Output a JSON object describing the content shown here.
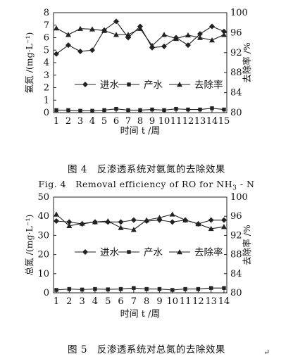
{
  "charts": [
    {
      "figure_caption": "图 4　反渗透系统对氨氮的去除效果",
      "figure_caption_en": "Fig. 4　Removal efficiency of RO for NH",
      "figure_caption_en_sub": "3",
      "figure_caption_en_tail": " - N",
      "ylabel_left": "氨氮 /(mg·L⁻¹)",
      "ylabel_right": "去除率 /%",
      "xlabel": "时间 t /周",
      "legend": {
        "in_label": "进水",
        "out_label": "产水",
        "rate_label": "去除率"
      }
    },
    {
      "figure_caption": "图 5　反渗透系统对总氮的去除效果",
      "ylabel_left": "总氮 /(mg·L⁻¹)",
      "ylabel_right": "去除率 /%",
      "xlabel": "时间 t /周",
      "legend": {
        "in_label": "进水",
        "out_label": "产水",
        "rate_label": "去除率"
      }
    }
  ],
  "return_mark": "↵",
  "chart_data": [
    {
      "type": "line",
      "x": [
        1,
        2,
        3,
        4,
        5,
        6,
        7,
        8,
        9,
        10,
        11,
        12,
        13,
        14,
        15
      ],
      "xlim": [
        1,
        15
      ],
      "ylim_left": [
        0,
        8
      ],
      "yticks_left": [
        0,
        1,
        2,
        3,
        4,
        5,
        6,
        7,
        8
      ],
      "ylim_right": [
        80,
        100
      ],
      "yticks_right": [
        80,
        84,
        88,
        92,
        96,
        100
      ],
      "ylabel": "氨氮 /(mg·L⁻¹)",
      "ylabel_right": "去除率 /%",
      "xlabel": "时间 t /周",
      "series": [
        {
          "name": "进水",
          "axis": "left",
          "marker": "diamond",
          "values": [
            4.7,
            5.4,
            4.9,
            5.0,
            6.6,
            7.3,
            6.0,
            6.9,
            5.2,
            5.3,
            6.0,
            5.4,
            6.3,
            6.9,
            6.5
          ]
        },
        {
          "name": "产水",
          "axis": "left",
          "marker": "square",
          "values": [
            0.2,
            0.2,
            0.15,
            0.15,
            0.2,
            0.3,
            0.2,
            0.2,
            0.25,
            0.2,
            0.3,
            0.25,
            0.25,
            0.35,
            0.25
          ]
        },
        {
          "name": "去除率",
          "axis": "right",
          "marker": "triangle",
          "values": [
            96.9,
            95.6,
            96.8,
            96.7,
            96.4,
            95.6,
            95.6,
            96.8,
            93.4,
            95.6,
            94.8,
            95.5,
            95.0,
            94.5,
            95.6
          ]
        }
      ],
      "legend_position": "center"
    },
    {
      "type": "line",
      "x": [
        1,
        2,
        3,
        4,
        5,
        6,
        7,
        8,
        9,
        10,
        11,
        12,
        13,
        14
      ],
      "xlim": [
        1,
        14
      ],
      "ylim_left": [
        0,
        50
      ],
      "yticks_left": [
        0,
        10,
        20,
        30,
        40,
        50
      ],
      "ylim_right": [
        80,
        100
      ],
      "yticks_right": [
        80,
        84,
        88,
        92,
        96,
        100
      ],
      "ylabel": "总氮 /(mg·L⁻¹)",
      "ylabel_right": "去除率 /%",
      "xlabel": "时间 t /周",
      "series": [
        {
          "name": "进水",
          "axis": "left",
          "marker": "diamond",
          "values": [
            37.5,
            37.0,
            36.0,
            37.0,
            37.0,
            37.0,
            38.0,
            37.5,
            38.0,
            37.0,
            38.0,
            36.0,
            38.0,
            38.0
          ]
        },
        {
          "name": "产水",
          "axis": "left",
          "marker": "square",
          "values": [
            1.5,
            2.0,
            1.7,
            2.0,
            1.8,
            2.0,
            2.5,
            2.0,
            2.0,
            1.5,
            2.0,
            2.0,
            2.5,
            2.5
          ]
        },
        {
          "name": "去除率",
          "axis": "right",
          "marker": "triangle",
          "values": [
            96.4,
            94.0,
            94.5,
            94.8,
            95.0,
            93.6,
            93.2,
            95.2,
            95.7,
            96.4,
            95.2,
            94.4,
            93.4,
            93.8
          ]
        }
      ],
      "legend_position": "center"
    }
  ]
}
